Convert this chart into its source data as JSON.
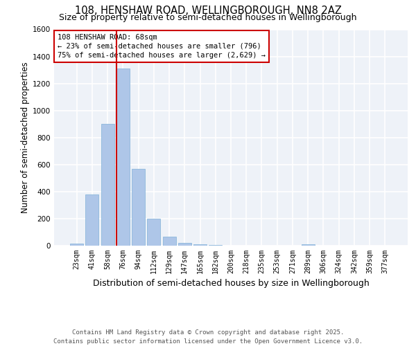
{
  "title_line1": "108, HENSHAW ROAD, WELLINGBOROUGH, NN8 2AZ",
  "title_line2": "Size of property relative to semi-detached houses in Wellingborough",
  "xlabel": "Distribution of semi-detached houses by size in Wellingborough",
  "ylabel": "Number of semi-detached properties",
  "categories": [
    "23sqm",
    "41sqm",
    "58sqm",
    "76sqm",
    "94sqm",
    "112sqm",
    "129sqm",
    "147sqm",
    "165sqm",
    "182sqm",
    "200sqm",
    "218sqm",
    "235sqm",
    "253sqm",
    "271sqm",
    "289sqm",
    "306sqm",
    "324sqm",
    "342sqm",
    "359sqm",
    "377sqm"
  ],
  "values": [
    15,
    380,
    900,
    1310,
    570,
    200,
    65,
    18,
    10,
    5,
    0,
    0,
    0,
    0,
    0,
    8,
    0,
    0,
    0,
    0,
    0
  ],
  "bar_color": "#aec6e8",
  "bar_edge_color": "#7fb0d8",
  "vline_x_index": 3,
  "vline_color": "#cc0000",
  "annotation_text": "108 HENSHAW ROAD: 68sqm\n← 23% of semi-detached houses are smaller (796)\n75% of semi-detached houses are larger (2,629) →",
  "annotation_box_color": "#ffffff",
  "annotation_box_edge": "#cc0000",
  "ylim": [
    0,
    1600
  ],
  "yticks": [
    0,
    200,
    400,
    600,
    800,
    1000,
    1200,
    1400,
    1600
  ],
  "footer_line1": "Contains HM Land Registry data © Crown copyright and database right 2025.",
  "footer_line2": "Contains public sector information licensed under the Open Government Licence v3.0.",
  "background_color": "#eef2f8",
  "grid_color": "#ffffff",
  "title_fontsize": 10.5,
  "subtitle_fontsize": 9,
  "axis_label_fontsize": 8.5,
  "tick_fontsize": 7,
  "annotation_fontsize": 7.5,
  "footer_fontsize": 6.5
}
